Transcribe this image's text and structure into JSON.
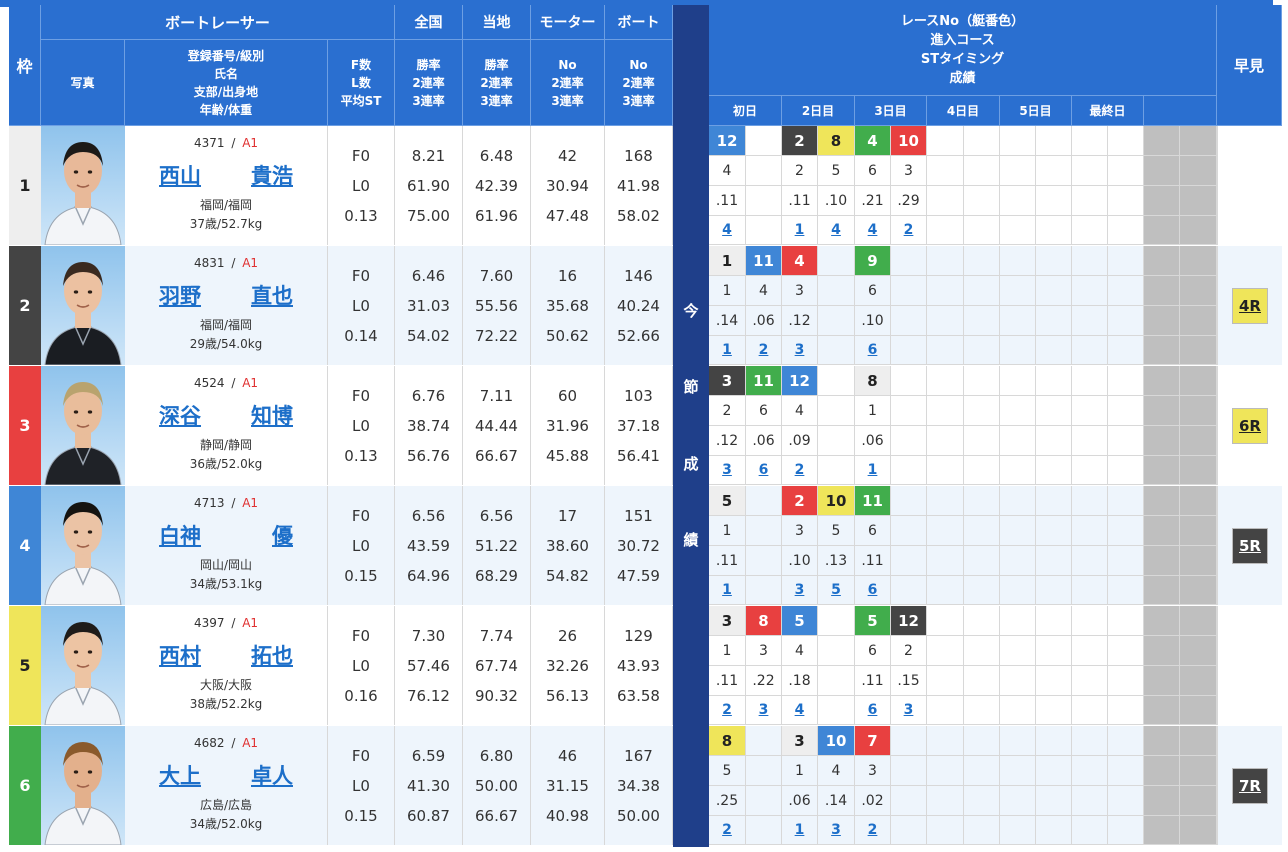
{
  "header": {
    "waku": "枠",
    "racer_group": "ボートレーサー",
    "photo": "写真",
    "profile_lines": [
      "登録番号/級別",
      "氏名",
      "支部/出身地",
      "年齢/体重"
    ],
    "fl_lines": [
      "F数",
      "L数",
      "平均ST"
    ],
    "zenkoku": "全国",
    "touchi": "当地",
    "motor": "モーター",
    "boat": "ボート",
    "rate_lines": [
      "勝率",
      "2連率",
      "3連率"
    ],
    "no_lines": [
      "No",
      "2連率",
      "3連率"
    ],
    "results_lines": [
      "レースNo（艇番色）",
      "進入コース",
      "STタイミング",
      "成績"
    ],
    "days": [
      "初日",
      "2日目",
      "3日目",
      "4日目",
      "5日目",
      "最終日"
    ],
    "hayami": "早見",
    "konsetsu_chars": [
      "今",
      "節",
      "成",
      "績"
    ]
  },
  "colors": {
    "header_blue": "#2a6fd0",
    "separator_navy": "#1f3f8a",
    "link_blue": "#1d6fc9",
    "class_red": "#e03030",
    "boat1": "#eeeeee",
    "boat2": "#444444",
    "boat3": "#e84040",
    "boat4": "#3f86d6",
    "boat5": "#efe55a",
    "boat6": "#41ad4c",
    "grey_column": "#bfbfbf"
  },
  "racers": [
    {
      "waku": "1",
      "reg": "4371",
      "cls": "A1",
      "name_sei": "西山",
      "name_mei": "貴浩",
      "branch": "福岡/福岡",
      "age_weight": "37歳/52.7kg",
      "f": "F0",
      "l": "L0",
      "st": "0.13",
      "zen": [
        "8.21",
        "61.90",
        "75.00"
      ],
      "toc": [
        "6.48",
        "42.39",
        "61.96"
      ],
      "mot": [
        "42",
        "30.94",
        "47.48"
      ],
      "boa": [
        "168",
        "41.98",
        "58.02"
      ],
      "races": [
        {
          "r": "12",
          "b": 4,
          "c": "4",
          "st": ".11",
          "rk": "4"
        },
        null,
        {
          "r": "2",
          "b": 2,
          "c": "2",
          "st": ".11",
          "rk": "1"
        },
        {
          "r": "8",
          "b": 5,
          "c": "5",
          "st": ".10",
          "rk": "4"
        },
        {
          "r": "4",
          "b": 6,
          "c": "6",
          "st": ".21",
          "rk": "4"
        },
        {
          "r": "10",
          "b": 3,
          "c": "3",
          "st": ".29",
          "rk": "2"
        }
      ],
      "hayami": null
    },
    {
      "waku": "2",
      "reg": "4831",
      "cls": "A1",
      "name_sei": "羽野",
      "name_mei": "直也",
      "branch": "福岡/福岡",
      "age_weight": "29歳/54.0kg",
      "f": "F0",
      "l": "L0",
      "st": "0.14",
      "zen": [
        "6.46",
        "31.03",
        "54.02"
      ],
      "toc": [
        "7.60",
        "55.56",
        "72.22"
      ],
      "mot": [
        "16",
        "35.68",
        "50.62"
      ],
      "boa": [
        "146",
        "40.24",
        "52.66"
      ],
      "races": [
        {
          "r": "1",
          "b": 1,
          "c": "1",
          "st": ".14",
          "rk": "1"
        },
        {
          "r": "11",
          "b": 4,
          "c": "4",
          "st": ".06",
          "rk": "2"
        },
        {
          "r": "4",
          "b": 3,
          "c": "3",
          "st": ".12",
          "rk": "3"
        },
        null,
        {
          "r": "9",
          "b": 6,
          "c": "6",
          "st": ".10",
          "rk": "6"
        },
        null
      ],
      "hayami": {
        "label": "4R",
        "b": 5
      }
    },
    {
      "waku": "3",
      "reg": "4524",
      "cls": "A1",
      "name_sei": "深谷",
      "name_mei": "知博",
      "branch": "静岡/静岡",
      "age_weight": "36歳/52.0kg",
      "f": "F0",
      "l": "L0",
      "st": "0.13",
      "zen": [
        "6.76",
        "38.74",
        "56.76"
      ],
      "toc": [
        "7.11",
        "44.44",
        "66.67"
      ],
      "mot": [
        "60",
        "31.96",
        "45.88"
      ],
      "boa": [
        "103",
        "37.18",
        "56.41"
      ],
      "races": [
        {
          "r": "3",
          "b": 2,
          "c": "2",
          "st": ".12",
          "rk": "3"
        },
        {
          "r": "11",
          "b": 6,
          "c": "6",
          "st": ".06",
          "rk": "6"
        },
        {
          "r": "12",
          "b": 4,
          "c": "4",
          "st": ".09",
          "rk": "2"
        },
        null,
        {
          "r": "8",
          "b": 1,
          "c": "1",
          "st": ".06",
          "rk": "1"
        },
        null
      ],
      "hayami": {
        "label": "6R",
        "b": 5
      }
    },
    {
      "waku": "4",
      "reg": "4713",
      "cls": "A1",
      "name_sei": "白神",
      "name_mei": "優",
      "branch": "岡山/岡山",
      "age_weight": "34歳/53.1kg",
      "f": "F0",
      "l": "L0",
      "st": "0.15",
      "zen": [
        "6.56",
        "43.59",
        "64.96"
      ],
      "toc": [
        "6.56",
        "51.22",
        "68.29"
      ],
      "mot": [
        "17",
        "38.60",
        "54.82"
      ],
      "boa": [
        "151",
        "30.72",
        "47.59"
      ],
      "races": [
        {
          "r": "5",
          "b": 1,
          "c": "1",
          "st": ".11",
          "rk": "1"
        },
        null,
        {
          "r": "2",
          "b": 3,
          "c": "3",
          "st": ".10",
          "rk": "3"
        },
        {
          "r": "10",
          "b": 5,
          "c": "5",
          "st": ".13",
          "rk": "5"
        },
        {
          "r": "11",
          "b": 6,
          "c": "6",
          "st": ".11",
          "rk": "6"
        },
        null
      ],
      "hayami": {
        "label": "5R",
        "b": 2
      }
    },
    {
      "waku": "5",
      "reg": "4397",
      "cls": "A1",
      "name_sei": "西村",
      "name_mei": "拓也",
      "branch": "大阪/大阪",
      "age_weight": "38歳/52.2kg",
      "f": "F0",
      "l": "L0",
      "st": "0.16",
      "zen": [
        "7.30",
        "57.46",
        "76.12"
      ],
      "toc": [
        "7.74",
        "67.74",
        "90.32"
      ],
      "mot": [
        "26",
        "32.26",
        "56.13"
      ],
      "boa": [
        "129",
        "43.93",
        "63.58"
      ],
      "races": [
        {
          "r": "3",
          "b": 1,
          "c": "1",
          "st": ".11",
          "rk": "2"
        },
        {
          "r": "8",
          "b": 3,
          "c": "3",
          "st": ".22",
          "rk": "3"
        },
        {
          "r": "5",
          "b": 4,
          "c": "4",
          "st": ".18",
          "rk": "4"
        },
        null,
        {
          "r": "5",
          "b": 6,
          "c": "6",
          "st": ".11",
          "rk": "6"
        },
        {
          "r": "12",
          "b": 2,
          "c": "2",
          "st": ".15",
          "rk": "3"
        }
      ],
      "hayami": null
    },
    {
      "waku": "6",
      "reg": "4682",
      "cls": "A1",
      "name_sei": "大上",
      "name_mei": "卓人",
      "branch": "広島/広島",
      "age_weight": "34歳/52.0kg",
      "f": "F0",
      "l": "L0",
      "st": "0.15",
      "zen": [
        "6.59",
        "41.30",
        "60.87"
      ],
      "toc": [
        "6.80",
        "50.00",
        "66.67"
      ],
      "mot": [
        "46",
        "31.15",
        "40.98"
      ],
      "boa": [
        "167",
        "34.38",
        "50.00"
      ],
      "races": [
        {
          "r": "8",
          "b": 5,
          "c": "5",
          "st": ".25",
          "rk": "2"
        },
        null,
        {
          "r": "3",
          "b": 1,
          "c": "1",
          "st": ".06",
          "rk": "1"
        },
        {
          "r": "10",
          "b": 4,
          "c": "4",
          "st": ".14",
          "rk": "3"
        },
        {
          "r": "7",
          "b": 3,
          "c": "3",
          "st": ".02",
          "rk": "2"
        },
        null
      ],
      "hayami": {
        "label": "7R",
        "b": 2
      }
    }
  ]
}
